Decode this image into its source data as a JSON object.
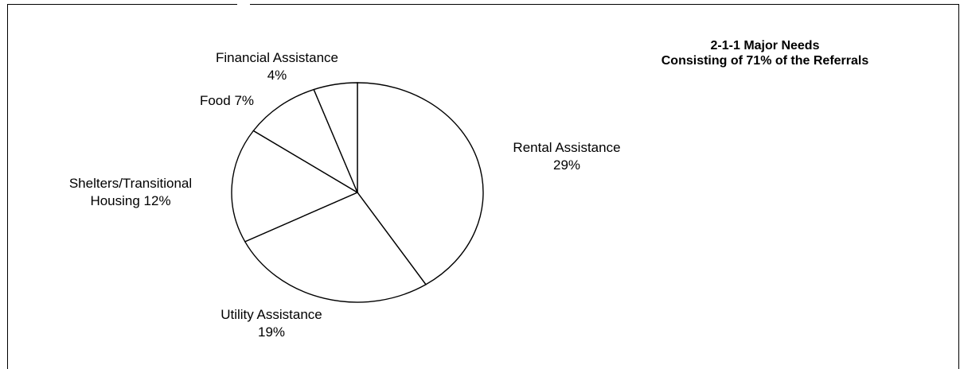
{
  "chart_data": {
    "type": "pie",
    "title": [
      "2-1-1 Major Needs",
      "Consisting of 71% of the Referrals"
    ],
    "slices": [
      {
        "name": "Rental Assistance",
        "value": 29,
        "label": [
          "Rental Assistance",
          "29%"
        ]
      },
      {
        "name": "Utility Assistance",
        "value": 19,
        "label": [
          "Utility Assistance",
          "19%"
        ]
      },
      {
        "name": "Shelters/Transitional Housing",
        "value": 12,
        "label": [
          "Shelters/Transitional",
          "Housing 12%"
        ]
      },
      {
        "name": "Food",
        "value": 7,
        "label": [
          "Food 7%"
        ]
      },
      {
        "name": "Financial Assistance",
        "value": 4,
        "label": [
          "Financial Assistance",
          "4%"
        ]
      }
    ],
    "slice_fill": "#ffffff",
    "stroke_color": "#000000",
    "legend": "none"
  }
}
